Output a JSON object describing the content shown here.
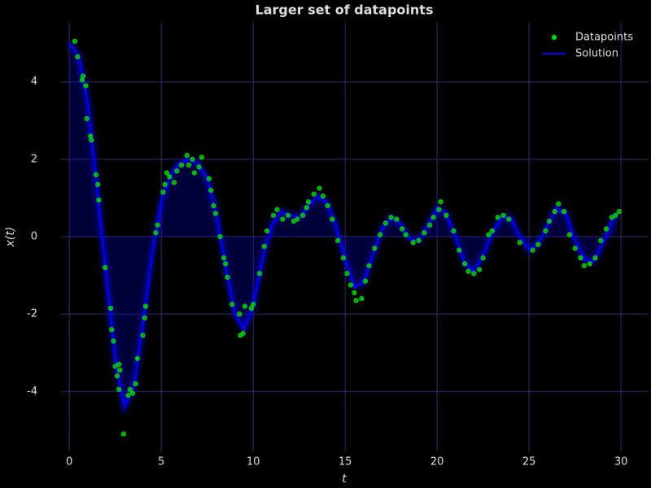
{
  "chart_data": {
    "type": "line",
    "title": "Larger set of datapoints",
    "x_label": "t",
    "y_label": "x(t)",
    "xlim": [
      -0.45,
      31.5
    ],
    "ylim": [
      -5.55,
      5.55
    ],
    "xticks": [
      0,
      5,
      10,
      15,
      20,
      25,
      30
    ],
    "yticks": [
      -4,
      -2,
      0,
      2,
      4
    ],
    "grid": true,
    "legend": "upper right",
    "series": [
      {
        "name": "Datapoints",
        "type": "scatter",
        "color": "#00dd00",
        "x": [
          0.3,
          0.45,
          0.7,
          0.75,
          0.9,
          0.95,
          1.15,
          1.2,
          1.45,
          1.55,
          1.6,
          1.95,
          2.25,
          2.3,
          2.4,
          2.5,
          2.6,
          2.7,
          2.75,
          2.7,
          2.95,
          3.2,
          3.3,
          3.45,
          3.6,
          3.7,
          4.0,
          4.1,
          4.15,
          4.7,
          4.8,
          5.1,
          5.2,
          5.3,
          5.45,
          5.7,
          5.85,
          6.1,
          6.4,
          6.5,
          6.7,
          6.8,
          7.05,
          7.2,
          7.6,
          7.7,
          7.85,
          7.95,
          8.2,
          8.4,
          8.5,
          8.6,
          8.85,
          9.25,
          9.3,
          9.45,
          9.55,
          9.9,
          10.0,
          10.35,
          10.6,
          10.75,
          11.1,
          11.3,
          11.6,
          11.9,
          12.2,
          12.4,
          12.7,
          12.9,
          13.0,
          13.3,
          13.6,
          13.8,
          14.05,
          14.3,
          14.6,
          14.9,
          15.1,
          15.3,
          15.5,
          15.6,
          15.9,
          16.1,
          16.3,
          16.6,
          16.9,
          17.2,
          17.5,
          17.8,
          18.1,
          18.3,
          18.7,
          19.0,
          19.3,
          19.6,
          19.8,
          20.1,
          20.2,
          20.5,
          20.9,
          21.2,
          21.5,
          21.7,
          22.0,
          22.3,
          22.5,
          22.8,
          23.0,
          23.3,
          23.6,
          23.9,
          24.5,
          25.2,
          25.5,
          25.9,
          26.1,
          26.4,
          26.6,
          26.9,
          27.2,
          27.5,
          27.8,
          28.0,
          28.3,
          28.6,
          28.9,
          29.2,
          29.5,
          29.7,
          29.9
        ],
        "values": [
          5.05,
          4.65,
          4.05,
          4.15,
          3.9,
          3.05,
          2.6,
          2.5,
          1.6,
          1.35,
          0.95,
          -0.8,
          -1.85,
          -2.4,
          -2.7,
          -3.35,
          -3.6,
          -3.3,
          -3.45,
          -3.95,
          -5.1,
          -4.1,
          -3.95,
          -4.05,
          -3.8,
          -3.15,
          -2.55,
          -2.1,
          -1.8,
          0.1,
          0.3,
          1.15,
          1.35,
          1.65,
          1.55,
          1.4,
          1.7,
          1.85,
          2.1,
          1.85,
          2.0,
          1.65,
          1.8,
          2.05,
          1.5,
          1.2,
          0.8,
          0.6,
          0.0,
          -0.55,
          -0.7,
          -1.05,
          -1.75,
          -2.0,
          -2.55,
          -2.5,
          -1.8,
          -1.85,
          -1.75,
          -0.95,
          -0.25,
          0.15,
          0.55,
          0.7,
          0.45,
          0.55,
          0.4,
          0.45,
          0.55,
          0.75,
          0.9,
          1.1,
          1.25,
          1.05,
          0.8,
          0.45,
          -0.1,
          -0.55,
          -0.95,
          -1.25,
          -1.45,
          -1.65,
          -1.6,
          -1.15,
          -0.75,
          -0.3,
          0.05,
          0.35,
          0.5,
          0.45,
          0.2,
          0.05,
          -0.15,
          -0.1,
          0.1,
          0.3,
          0.5,
          0.7,
          0.9,
          0.55,
          0.15,
          -0.35,
          -0.7,
          -0.9,
          -0.95,
          -0.85,
          -0.55,
          0.05,
          0.15,
          0.5,
          0.55,
          0.45,
          -0.15,
          -0.35,
          -0.2,
          0.15,
          0.4,
          0.65,
          0.85,
          0.65,
          0.05,
          -0.3,
          -0.55,
          -0.75,
          -0.7,
          -0.55,
          -0.1,
          0.2,
          0.5,
          0.55,
          0.65
        ]
      },
      {
        "name": "Solution",
        "type": "line",
        "color": "#0000ff",
        "x": [
          0,
          0.5,
          1,
          1.5,
          2,
          2.5,
          3,
          3.5,
          4,
          4.5,
          5,
          5.5,
          6,
          6.5,
          7,
          7.5,
          8,
          8.5,
          9,
          9.5,
          10,
          10.5,
          11,
          11.5,
          12,
          12.5,
          13,
          13.5,
          14,
          14.5,
          15,
          15.5,
          16,
          16.5,
          17,
          17.5,
          18,
          18.5,
          19,
          19.5,
          20,
          20.5,
          21,
          21.5,
          22,
          22.5,
          23,
          23.5,
          24,
          24.5,
          25,
          25.5,
          26,
          26.5,
          27,
          27.5,
          28,
          28.5,
          29,
          29.5,
          29.8
        ],
        "values": [
          5.0,
          4.7,
          3.5,
          1.3,
          -1.0,
          -3.2,
          -4.4,
          -3.9,
          -2.3,
          -0.5,
          0.9,
          1.6,
          1.9,
          2.0,
          1.9,
          1.5,
          0.6,
          -0.8,
          -2.0,
          -2.4,
          -1.8,
          -0.6,
          0.3,
          0.65,
          0.55,
          0.5,
          0.8,
          1.05,
          0.9,
          0.3,
          -0.6,
          -1.3,
          -1.2,
          -0.5,
          0.2,
          0.5,
          0.35,
          -0.05,
          -0.1,
          0.3,
          0.75,
          0.6,
          0.0,
          -0.7,
          -0.9,
          -0.5,
          0.1,
          0.5,
          0.5,
          0.0,
          -0.35,
          -0.2,
          0.3,
          0.75,
          0.6,
          -0.1,
          -0.6,
          -0.65,
          -0.2,
          0.4,
          0.6
        ]
      }
    ]
  }
}
